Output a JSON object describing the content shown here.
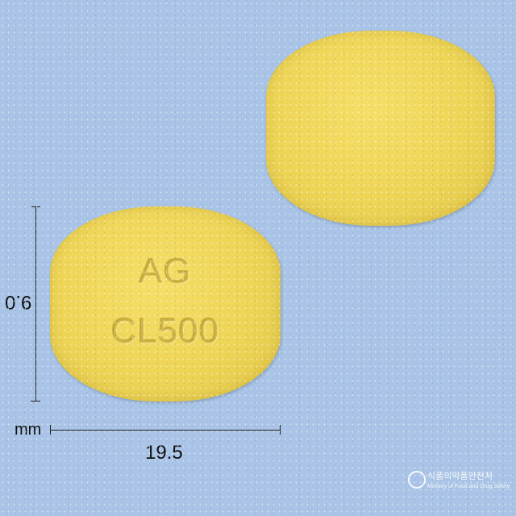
{
  "pill_front": {
    "imprint_line1": "AG",
    "imprint_line2": "CL500",
    "color": "#eed556"
  },
  "pill_back": {
    "color": "#eed556"
  },
  "dimensions": {
    "length_label": "19.5",
    "width_label": "9.0",
    "unit_label": "mm"
  },
  "watermark": {
    "korean_text": "식품의약품안전처",
    "english_text": "Ministry of Food and Drug Safety",
    "icon": "government-seal-icon"
  },
  "background_color": "#a9c4e6"
}
